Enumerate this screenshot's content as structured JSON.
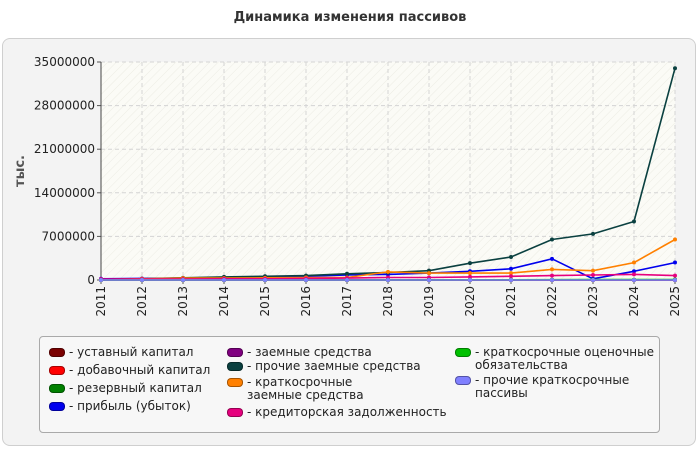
{
  "chart_data": {
    "type": "line",
    "title": "Динамика изменения пассивов",
    "ylabel": "тыс.",
    "xlabel": "",
    "x": [
      "2011",
      "2012",
      "2013",
      "2014",
      "2015",
      "2016",
      "2017",
      "2018",
      "2019",
      "2020",
      "2021",
      "2022",
      "2023",
      "2024",
      "2025"
    ],
    "ylim": [
      0,
      35000000
    ],
    "yticks": [
      0,
      7000000,
      14000000,
      21000000,
      28000000,
      35000000
    ],
    "grid": true,
    "legend": "bottom",
    "series": [
      {
        "name": "уставный капитал",
        "color": "#7a0000",
        "values": [
          10000,
          10000,
          10000,
          10000,
          10000,
          10000,
          10000,
          10000,
          10000,
          10000,
          10000,
          10000,
          10000,
          10000,
          10000
        ]
      },
      {
        "name": "добавочный капитал",
        "color": "#ff0000",
        "values": [
          0,
          0,
          0,
          0,
          0,
          0,
          0,
          0,
          0,
          0,
          0,
          0,
          0,
          0,
          0
        ]
      },
      {
        "name": "резервный капитал",
        "color": "#008000",
        "values": [
          500,
          500,
          500,
          500,
          500,
          500,
          500,
          500,
          500,
          500,
          500,
          500,
          500,
          500,
          500
        ]
      },
      {
        "name": "прибыль (убыток)",
        "color": "#0000ee",
        "values": [
          200000,
          250000,
          300000,
          400000,
          450000,
          600000,
          800000,
          900000,
          1100000,
          1400000,
          1800000,
          3400000,
          200000,
          1400000,
          2800000
        ]
      },
      {
        "name": "заемные средства",
        "color": "#800080",
        "values": [
          0,
          0,
          0,
          0,
          0,
          0,
          0,
          0,
          0,
          0,
          0,
          0,
          0,
          0,
          0
        ]
      },
      {
        "name": "прочие заемные средства",
        "color": "#0a4040",
        "values": [
          100000,
          200000,
          350000,
          500000,
          600000,
          700000,
          1000000,
          1200000,
          1500000,
          2700000,
          3700000,
          6500000,
          7400000,
          9400000,
          34000000
        ]
      },
      {
        "name": "краткосрочные заемные средства",
        "color": "#ff8000",
        "values": [
          100000,
          200000,
          300000,
          300000,
          350000,
          400000,
          400000,
          1300000,
          1100000,
          1100000,
          1100000,
          1700000,
          1500000,
          2800000,
          6500000
        ]
      },
      {
        "name": "кредиторская задолженность",
        "color": "#e6007e",
        "values": [
          150000,
          150000,
          150000,
          200000,
          200000,
          250000,
          300000,
          400000,
          400000,
          500000,
          600000,
          700000,
          800000,
          900000,
          700000
        ]
      },
      {
        "name": "краткосрочные оценочные обязательства",
        "color": "#00c000",
        "values": [
          0,
          0,
          0,
          0,
          0,
          0,
          0,
          10000,
          20000,
          30000,
          40000,
          50000,
          60000,
          70000,
          80000
        ]
      },
      {
        "name": "прочие краткосрочные пассивы",
        "color": "#8080ff",
        "values": [
          0,
          0,
          0,
          0,
          0,
          0,
          0,
          0,
          0,
          0,
          0,
          0,
          0,
          0,
          0
        ]
      }
    ]
  },
  "yticklabels": [
    "0",
    "7000000",
    "14000000",
    "21000000",
    "28000000",
    "35000000"
  ]
}
